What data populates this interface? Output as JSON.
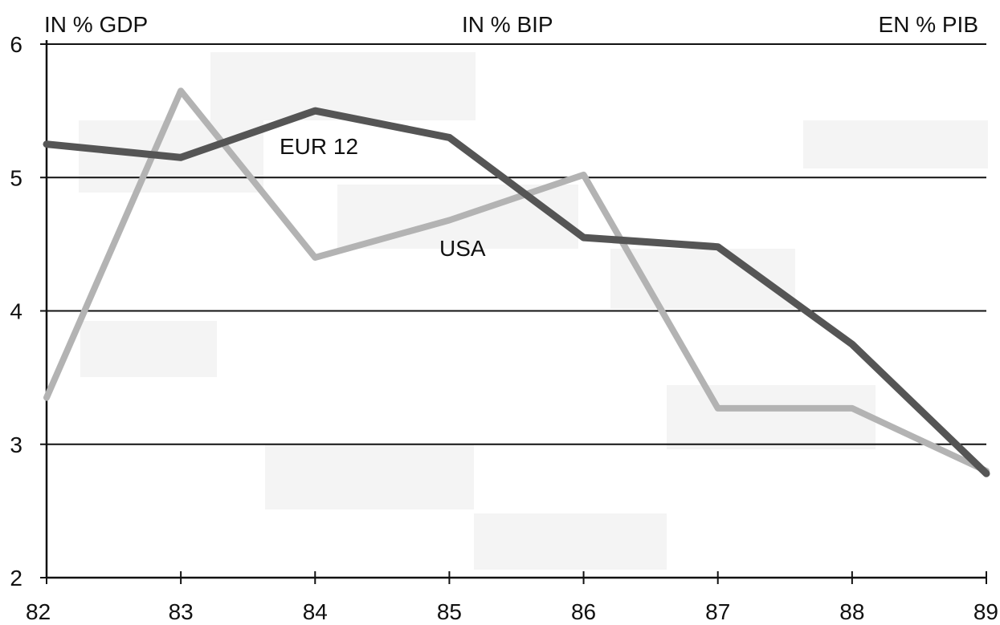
{
  "chart_data": {
    "type": "line",
    "headers": {
      "left": "IN % GDP",
      "center": "IN % BIP",
      "right": "EN % PIB"
    },
    "x": [
      "82",
      "83",
      "84",
      "85",
      "86",
      "87",
      "88",
      "89"
    ],
    "ylim": [
      2,
      6
    ],
    "yticks": [
      2,
      3,
      4,
      5,
      6
    ],
    "grid": true,
    "series": [
      {
        "name": "EUR 12",
        "color": "#555555",
        "values": [
          5.25,
          5.15,
          5.5,
          5.3,
          4.55,
          4.48,
          3.75,
          2.78
        ]
      },
      {
        "name": "USA",
        "color": "#b3b3b3",
        "values": [
          3.35,
          5.65,
          4.4,
          4.68,
          5.02,
          3.27,
          3.27,
          2.8
        ]
      }
    ]
  }
}
